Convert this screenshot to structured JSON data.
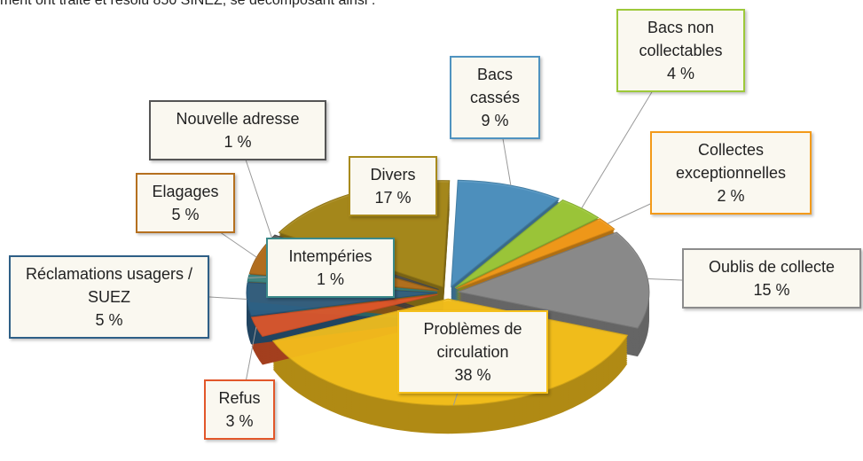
{
  "text": "ment ont traité et résolu 850 SINEZ, se décomposant ainsi :",
  "chart_data": {
    "type": "pie",
    "categories": [
      "Bacs cassés",
      "Bacs non collectables",
      "Collectes exceptionnelles",
      "Oublis de collecte",
      "Problèmes de circulation",
      "Refus",
      "Réclamations usagers / SUEZ",
      "Intempéries",
      "Elagages",
      "Nouvelle adresse",
      "Divers"
    ],
    "values": [
      9,
      4,
      2,
      15,
      38,
      3,
      5,
      1,
      5,
      1,
      17
    ],
    "value_labels": [
      "9 %",
      "4 %",
      "2 %",
      "15 %",
      "38 %",
      "3 %",
      "5 %",
      "1 %",
      "5 %",
      "1 %",
      "17 %"
    ],
    "colors": [
      "#4f93c0",
      "#9dc93a",
      "#f39a1a",
      "#8c8c8c",
      "#f5c01c",
      "#e2572a",
      "#2e5f86",
      "#3b8a8a",
      "#b5701f",
      "#555555",
      "#a88a1c"
    ]
  }
}
